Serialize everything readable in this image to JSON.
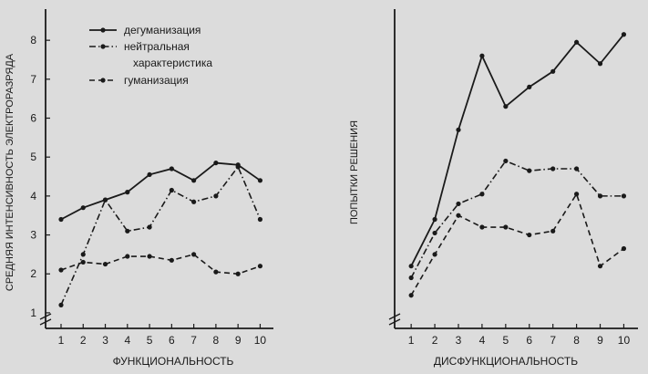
{
  "chart_data": [
    {
      "type": "line",
      "xlabel": "ФУНКЦИОНАЛЬНОСТЬ",
      "ylabel": "СРЕДНЯЯ ИНТЕНСИВНОСТЬ ЭЛЕКТРОРАЗРЯДА",
      "x": [
        1,
        2,
        3,
        4,
        5,
        6,
        7,
        8,
        9,
        10
      ],
      "xlim": [
        0.3,
        10.6
      ],
      "ylim": [
        0.6,
        8.8
      ],
      "yticks": [
        1,
        2,
        3,
        4,
        5,
        6,
        7,
        8
      ],
      "legend": {
        "placement": "top-right",
        "entries": [
          "дегуманизация",
          "нейтральная характеристика",
          "гуманизация"
        ]
      },
      "series": [
        {
          "name": "дегуманизация",
          "style": "solid",
          "values": [
            3.4,
            3.7,
            3.9,
            4.1,
            4.55,
            4.7,
            4.4,
            4.85,
            4.8,
            4.4
          ]
        },
        {
          "name": "нейтральная характеристика",
          "style": "dash-dot",
          "values": [
            1.2,
            2.5,
            3.9,
            3.1,
            3.2,
            4.15,
            3.85,
            4.0,
            4.75,
            3.4
          ]
        },
        {
          "name": "гуманизация",
          "style": "dashed",
          "values": [
            2.1,
            2.3,
            2.25,
            2.45,
            2.45,
            2.35,
            2.5,
            2.05,
            2.0,
            2.2
          ]
        }
      ]
    },
    {
      "type": "line",
      "xlabel": "ДИСФУНКЦИОНАЛЬНОСТЬ",
      "ylabel": "ПОПЫТКИ РЕШЕНИЯ",
      "x": [
        1,
        2,
        3,
        4,
        5,
        6,
        7,
        8,
        9,
        10
      ],
      "xlim": [
        0.3,
        10.6
      ],
      "ylim": [
        0.6,
        8.8
      ],
      "series": [
        {
          "name": "дегуманизация",
          "style": "solid",
          "values": [
            2.2,
            3.4,
            5.7,
            7.6,
            6.3,
            6.8,
            7.2,
            7.95,
            7.4,
            8.15
          ]
        },
        {
          "name": "нейтральная характеристика",
          "style": "dash-dot",
          "values": [
            1.9,
            3.05,
            3.8,
            4.05,
            4.9,
            4.65,
            4.7,
            4.7,
            4.0,
            4.0
          ]
        },
        {
          "name": "гуманизация",
          "style": "dashed",
          "values": [
            1.45,
            2.5,
            3.5,
            3.2,
            3.2,
            3.0,
            3.1,
            4.05,
            2.2,
            2.65
          ]
        }
      ]
    }
  ],
  "colors": {
    "ink": "#1a1a1a",
    "paper": "#dcdcdc"
  }
}
